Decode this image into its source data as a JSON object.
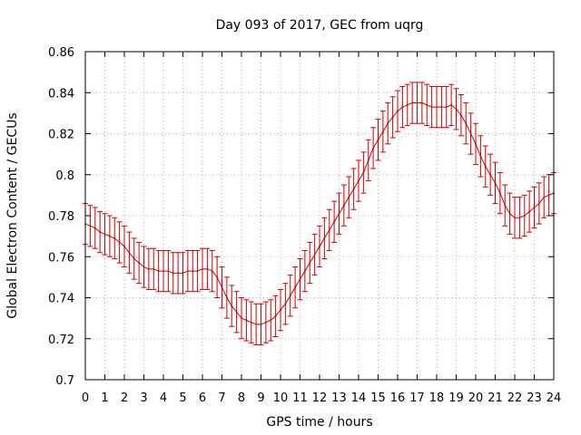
{
  "chart_data": {
    "type": "line",
    "title": "Day 093 of 2017, GEC from uqrg",
    "xlabel": "GPS time / hours",
    "ylabel": "Global Electron Content / GECUs",
    "xlim": [
      0,
      24
    ],
    "ylim": [
      0.7,
      0.86
    ],
    "grid": true,
    "x_ticks": [
      0,
      1,
      2,
      3,
      4,
      5,
      6,
      7,
      8,
      9,
      10,
      11,
      12,
      13,
      14,
      15,
      16,
      17,
      18,
      19,
      20,
      21,
      22,
      23,
      24
    ],
    "y_ticks": [
      0.7,
      0.72,
      0.74,
      0.76,
      0.78,
      0.8,
      0.82,
      0.84,
      0.86
    ],
    "x_tick_labels": [
      "0",
      "1",
      "2",
      "3",
      "4",
      "5",
      "6",
      "7",
      "8",
      "9",
      "10",
      "11",
      "12",
      "13",
      "14",
      "15",
      "16",
      "17",
      "18",
      "19",
      "20",
      "21",
      "22",
      "23",
      "24"
    ],
    "y_tick_labels": [
      "0.7",
      "0.72",
      "0.74",
      "0.76",
      "0.78",
      "0.8",
      "0.82",
      "0.84",
      "0.86"
    ],
    "line_color": "#cc0000",
    "error": 0.01,
    "series": [
      {
        "name": "GEC",
        "x": [
          0,
          0.25,
          0.5,
          0.75,
          1,
          1.25,
          1.5,
          1.75,
          2,
          2.25,
          2.5,
          2.75,
          3,
          3.25,
          3.5,
          3.75,
          4,
          4.25,
          4.5,
          4.75,
          5,
          5.25,
          5.5,
          5.75,
          6,
          6.25,
          6.5,
          6.75,
          7,
          7.25,
          7.5,
          7.75,
          8,
          8.25,
          8.5,
          8.75,
          9,
          9.25,
          9.5,
          9.75,
          10,
          10.25,
          10.5,
          10.75,
          11,
          11.25,
          11.5,
          11.75,
          12,
          12.25,
          12.5,
          12.75,
          13,
          13.25,
          13.5,
          13.75,
          14,
          14.25,
          14.5,
          14.75,
          15,
          15.25,
          15.5,
          15.75,
          16,
          16.25,
          16.5,
          16.75,
          17,
          17.25,
          17.5,
          17.75,
          18,
          18.25,
          18.5,
          18.75,
          19,
          19.25,
          19.5,
          19.75,
          20,
          20.25,
          20.5,
          20.75,
          21,
          21.25,
          21.5,
          21.75,
          22,
          22.25,
          22.5,
          22.75,
          23,
          23.25,
          23.5,
          23.75,
          24
        ],
        "values": [
          0.776,
          0.775,
          0.774,
          0.772,
          0.771,
          0.77,
          0.769,
          0.767,
          0.765,
          0.762,
          0.759,
          0.757,
          0.755,
          0.754,
          0.754,
          0.753,
          0.753,
          0.753,
          0.752,
          0.752,
          0.752,
          0.753,
          0.753,
          0.753,
          0.754,
          0.754,
          0.753,
          0.75,
          0.745,
          0.74,
          0.736,
          0.733,
          0.73,
          0.729,
          0.728,
          0.727,
          0.727,
          0.728,
          0.729,
          0.731,
          0.734,
          0.737,
          0.741,
          0.745,
          0.749,
          0.753,
          0.757,
          0.761,
          0.765,
          0.769,
          0.773,
          0.777,
          0.781,
          0.785,
          0.789,
          0.793,
          0.797,
          0.801,
          0.807,
          0.813,
          0.817,
          0.821,
          0.825,
          0.828,
          0.831,
          0.833,
          0.834,
          0.835,
          0.835,
          0.835,
          0.834,
          0.833,
          0.833,
          0.833,
          0.833,
          0.834,
          0.832,
          0.829,
          0.825,
          0.82,
          0.815,
          0.809,
          0.804,
          0.8,
          0.796,
          0.791,
          0.785,
          0.781,
          0.779,
          0.779,
          0.78,
          0.782,
          0.784,
          0.786,
          0.789,
          0.79,
          0.791
        ]
      }
    ]
  }
}
